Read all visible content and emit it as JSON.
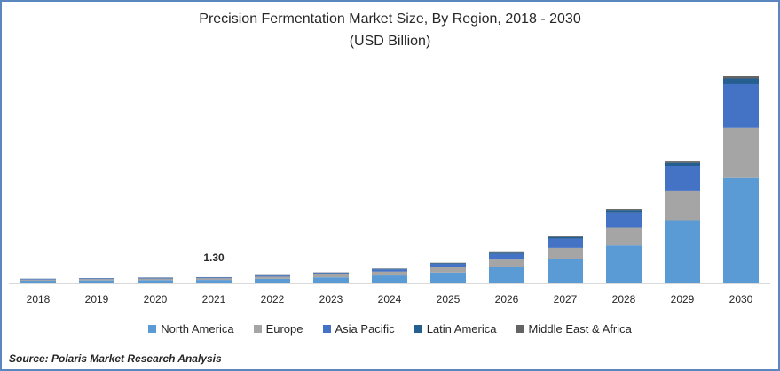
{
  "chart_data": {
    "type": "bar",
    "stacked": true,
    "title": "Precision Fermentation Market Size, By Region, 2018 - 2030",
    "subtitle": "(USD Billion)",
    "categories": [
      "2018",
      "2019",
      "2020",
      "2021",
      "2022",
      "2023",
      "2024",
      "2025",
      "2026",
      "2027",
      "2028",
      "2029",
      "2030"
    ],
    "series": [
      {
        "name": "North America",
        "color": "#5b9bd5",
        "values": [
          0.55,
          0.62,
          0.68,
          0.72,
          0.95,
          1.25,
          1.65,
          2.25,
          3.35,
          5.0,
          7.9,
          13.0,
          22.0
        ]
      },
      {
        "name": "Europe",
        "color": "#a5a5a5",
        "values": [
          0.25,
          0.28,
          0.32,
          0.34,
          0.45,
          0.6,
          0.8,
          1.1,
          1.6,
          2.4,
          3.8,
          6.2,
          10.5
        ]
      },
      {
        "name": "Asia Pacific",
        "color": "#4472c4",
        "values": [
          0.12,
          0.13,
          0.15,
          0.16,
          0.22,
          0.3,
          0.45,
          0.7,
          1.2,
          1.9,
          3.1,
          5.2,
          9.0
        ]
      },
      {
        "name": "Latin America",
        "color": "#255e91",
        "values": [
          0.04,
          0.04,
          0.05,
          0.05,
          0.07,
          0.09,
          0.12,
          0.16,
          0.24,
          0.34,
          0.48,
          0.75,
          1.2
        ]
      },
      {
        "name": "Middle East & Africa",
        "color": "#636363",
        "values": [
          0.02,
          0.02,
          0.03,
          0.03,
          0.04,
          0.05,
          0.06,
          0.08,
          0.11,
          0.15,
          0.2,
          0.28,
          0.45
        ]
      }
    ],
    "data_labels": [
      {
        "category": "2021",
        "text": "1.30"
      }
    ],
    "ylim": [
      0,
      45
    ],
    "yaxis_visible": false,
    "grid": false,
    "legend_position": "bottom"
  },
  "source": "Source: Polaris  Market Research Analysis"
}
